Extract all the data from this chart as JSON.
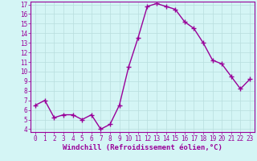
{
  "x": [
    0,
    1,
    2,
    3,
    4,
    5,
    6,
    7,
    8,
    9,
    10,
    11,
    12,
    13,
    14,
    15,
    16,
    17,
    18,
    19,
    20,
    21,
    22,
    23
  ],
  "y": [
    6.5,
    7.0,
    5.2,
    5.5,
    5.5,
    5.0,
    5.5,
    4.0,
    4.5,
    6.5,
    10.5,
    13.5,
    16.8,
    17.1,
    16.8,
    16.5,
    15.2,
    14.5,
    13.0,
    11.2,
    10.8,
    9.5,
    8.2,
    9.2
  ],
  "color": "#990099",
  "bg_color": "#d4f5f5",
  "grid_color": "#b8dede",
  "xlabel": "Windchill (Refroidissement éolien,°C)",
  "ylim_min": 3.7,
  "ylim_max": 17.3,
  "xlim_min": -0.5,
  "xlim_max": 23.5,
  "yticks": [
    4,
    5,
    6,
    7,
    8,
    9,
    10,
    11,
    12,
    13,
    14,
    15,
    16,
    17
  ],
  "xticks": [
    0,
    1,
    2,
    3,
    4,
    5,
    6,
    7,
    8,
    9,
    10,
    11,
    12,
    13,
    14,
    15,
    16,
    17,
    18,
    19,
    20,
    21,
    22,
    23
  ],
  "marker": "+",
  "linewidth": 1.0,
  "markersize": 4,
  "markeredgewidth": 1.0,
  "tick_fontsize": 5.5,
  "xlabel_fontsize": 6.5,
  "spine_linewidth": 0.8,
  "grid_linewidth": 0.5
}
